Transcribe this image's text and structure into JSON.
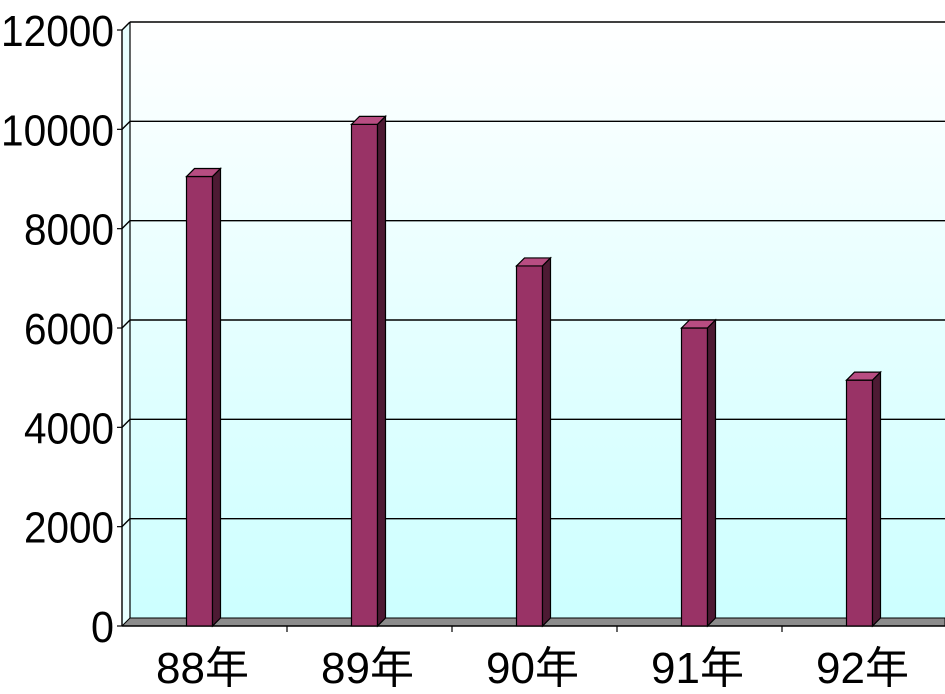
{
  "chart_data": {
    "type": "bar",
    "categories": [
      "88年",
      "89年",
      "90年",
      "91年",
      "92年"
    ],
    "values": [
      9050,
      10100,
      7250,
      6000,
      4950
    ],
    "ylim": [
      0,
      12000
    ],
    "yticks": [
      "0",
      "2000",
      "4000",
      "6000",
      "8000",
      "10000",
      "12000"
    ],
    "grid": true,
    "legend": "none",
    "title": "",
    "xlabel": "",
    "ylabel": ""
  },
  "colors": {
    "bar_front": "#993366",
    "bar_top": "#b84d82",
    "bar_side": "#4d1a33",
    "gradient_top": "#ffffff",
    "gradient_bottom": "#ccffff",
    "grid": "#000000",
    "floor": "#8c8c8c"
  }
}
